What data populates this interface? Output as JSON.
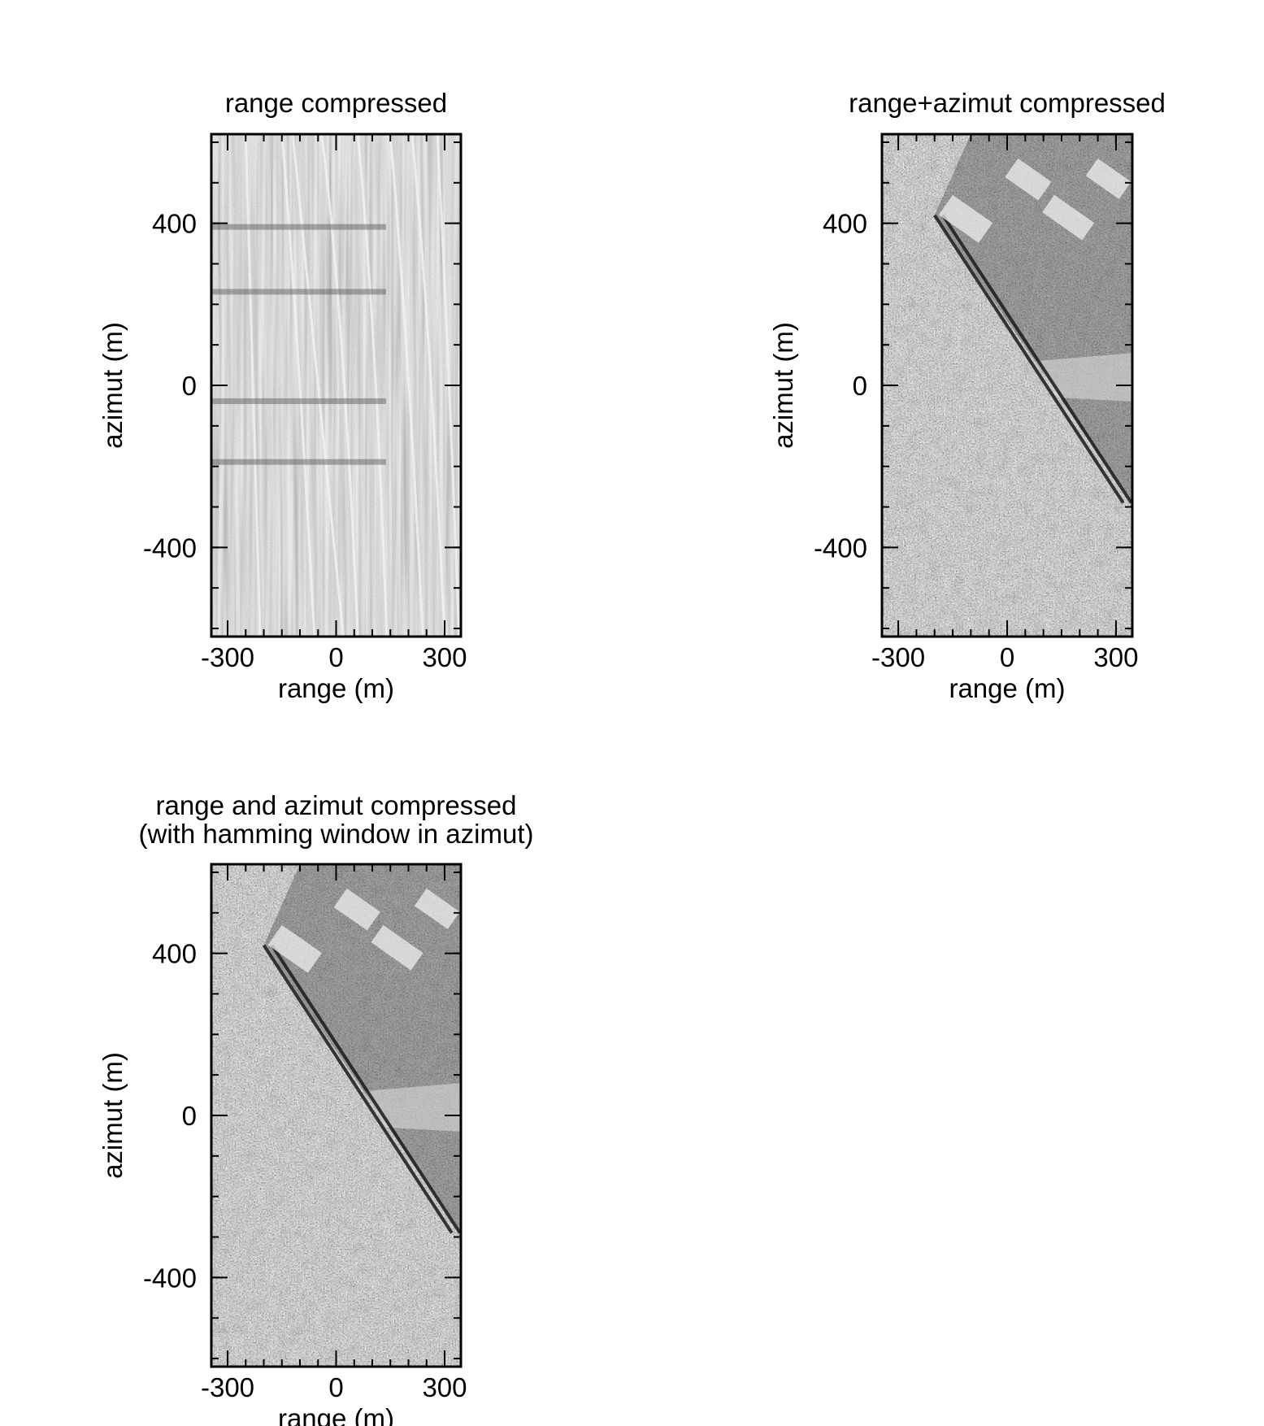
{
  "chart_data": [
    {
      "type": "heatmap",
      "title": [
        "range compressed"
      ],
      "xlabel": "range (m)",
      "ylabel": "azimut (m)",
      "xlim": [
        -345,
        345
      ],
      "ylim": [
        -620,
        620
      ],
      "xticks": [
        -300,
        0,
        300
      ],
      "yticks": [
        400,
        0,
        -400
      ],
      "grid": false,
      "colormap": "grayscale",
      "image": {
        "texture": "range-streaks",
        "dark_rows": [
          390,
          230,
          -40,
          -190
        ]
      }
    },
    {
      "type": "heatmap",
      "title": [
        "range+azimut compressed"
      ],
      "xlabel": "range (m)",
      "ylabel": "azimut (m)",
      "xlim": [
        -345,
        345
      ],
      "ylim": [
        -620,
        620
      ],
      "xticks": [
        -300,
        0,
        300
      ],
      "yticks": [
        400,
        0,
        -400
      ],
      "grid": false,
      "colormap": "grayscale",
      "image": {
        "texture": "focused-scene",
        "road": [
          [
            -200,
            420
          ],
          [
            320,
            -290
          ]
        ],
        "bright_band_y": [
          60,
          -40
        ]
      }
    },
    {
      "type": "heatmap",
      "title": [
        "range and azimut compressed",
        "(with hamming window in azimut)"
      ],
      "xlabel": "range (m)",
      "ylabel": "azimut (m)",
      "xlim": [
        -345,
        345
      ],
      "ylim": [
        -620,
        620
      ],
      "xticks": [
        -300,
        0,
        300
      ],
      "yticks": [
        400,
        0,
        -400
      ],
      "grid": false,
      "colormap": "grayscale",
      "image": {
        "texture": "focused-scene",
        "road": [
          [
            -200,
            420
          ],
          [
            320,
            -290
          ]
        ],
        "bright_band_y": [
          60,
          -40
        ]
      }
    }
  ]
}
